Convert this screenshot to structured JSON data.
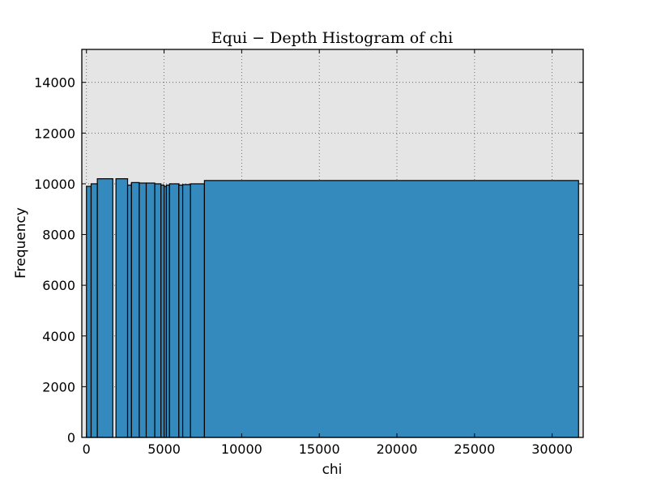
{
  "chart_data": {
    "type": "bar",
    "title": "Equi − Depth Histogram of chi",
    "xlabel": "chi",
    "ylabel": "Frequency",
    "xlim": [
      -300,
      32000
    ],
    "ylim": [
      0,
      15300
    ],
    "xticks": [
      0,
      5000,
      10000,
      15000,
      20000,
      25000,
      30000
    ],
    "xtick_labels": [
      "0",
      "5000",
      "10000",
      "15000",
      "20000",
      "25000",
      "30000"
    ],
    "yticks": [
      0,
      2000,
      4000,
      6000,
      8000,
      10000,
      12000,
      14000
    ],
    "ytick_labels": [
      "0",
      "2000",
      "4000",
      "6000",
      "8000",
      "10000",
      "12000",
      "14000"
    ],
    "grid": true,
    "bins": [
      {
        "x0": 0,
        "x1": 300,
        "value": 9900
      },
      {
        "x0": 300,
        "x1": 700,
        "value": 10000
      },
      {
        "x0": 700,
        "x1": 1700,
        "value": 10200
      },
      {
        "x0": 1900,
        "x1": 2650,
        "value": 10200
      },
      {
        "x0": 2650,
        "x1": 2900,
        "value": 9950
      },
      {
        "x0": 2900,
        "x1": 3400,
        "value": 10050
      },
      {
        "x0": 3400,
        "x1": 3850,
        "value": 10030
      },
      {
        "x0": 3850,
        "x1": 4400,
        "value": 10030
      },
      {
        "x0": 4400,
        "x1": 4800,
        "value": 10000
      },
      {
        "x0": 4800,
        "x1": 5000,
        "value": 9950
      },
      {
        "x0": 5000,
        "x1": 5150,
        "value": 9900
      },
      {
        "x0": 5150,
        "x1": 5350,
        "value": 9950
      },
      {
        "x0": 5350,
        "x1": 5950,
        "value": 10000
      },
      {
        "x0": 5950,
        "x1": 6200,
        "value": 9950
      },
      {
        "x0": 6200,
        "x1": 6700,
        "value": 9970
      },
      {
        "x0": 6700,
        "x1": 7600,
        "value": 10000
      },
      {
        "x0": 7600,
        "x1": 31700,
        "value": 10130
      }
    ],
    "colors": {
      "bar_fill": "#348abd",
      "bar_edge": "#000000",
      "plot_background": "#e5e5e5",
      "grid": "#555555"
    }
  }
}
